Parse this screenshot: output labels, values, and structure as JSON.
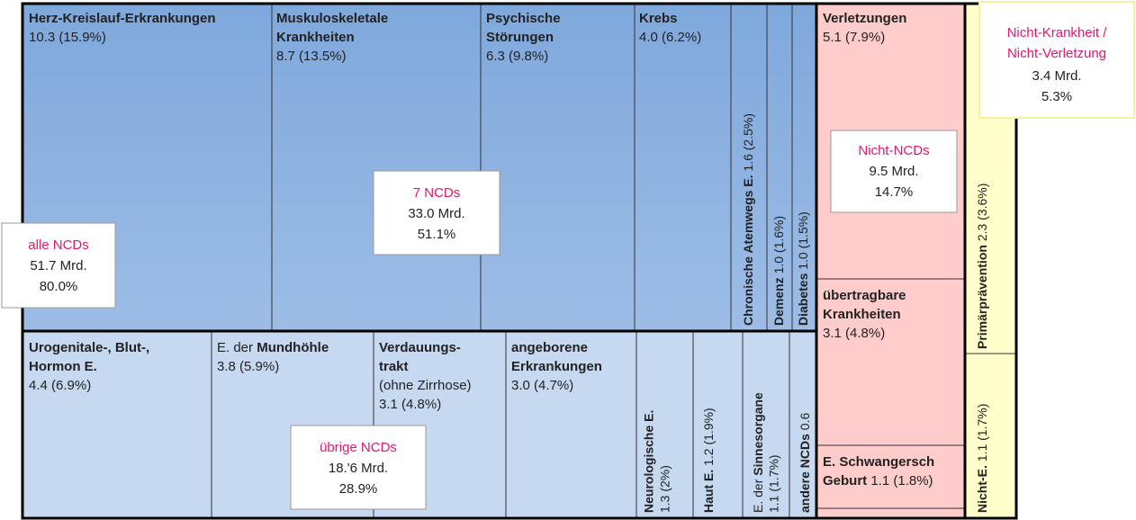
{
  "groups": {
    "all_ncds": {
      "label": "alle NCDs",
      "amount": "51.7 Mrd.",
      "share": "80.0%"
    },
    "seven_ncds": {
      "label": "7 NCDs",
      "amount": "33.0  Mrd.",
      "share": "51.1%"
    },
    "other_ncds": {
      "label": "übrige  NCDs",
      "amount": "18.'6 Mrd.",
      "share": "28.9%"
    },
    "non_ncds": {
      "label": "Nicht-NCDs",
      "amount": "9.5  Mrd.",
      "share": "14.7%"
    },
    "non_disease": {
      "label": [
        "Nicht-Krankheit /",
        "Nicht-Verletzung"
      ],
      "amount": "3.4 Mrd.",
      "share": "5.3%"
    }
  },
  "cells": [
    {
      "name": [
        "Herz-Kreislauf-Erkrankungen"
      ],
      "value": "10.3 (15.9%)"
    },
    {
      "name": [
        "Muskuloskeletale",
        "Krankheiten"
      ],
      "value": "8.7 (13.5%)"
    },
    {
      "name": [
        "Psychische",
        "Störungen"
      ],
      "value": "6.3 (9.8%)"
    },
    {
      "name": [
        "Krebs"
      ],
      "value": "4.0 (6.2%)"
    },
    {
      "name": [
        "Chronische Atemwegs E."
      ],
      "value": "1.6 (2.5%)"
    },
    {
      "name": [
        "Demenz"
      ],
      "value": "1.0 (1.6%)"
    },
    {
      "name": [
        "Diabetes"
      ],
      "value": "1.0 (1.5%)"
    },
    {
      "name": [
        "Urogenitale-, Blut-,",
        "Hormon E."
      ],
      "value": "4.4 (6.9%)"
    },
    {
      "prefix": "E. der",
      "name": [
        "Mundhöhle"
      ],
      "value": "3.8 (5.9%)"
    },
    {
      "name": [
        "Verdauungs-",
        "trakt"
      ],
      "note": "(ohne Zirrhose)",
      "value": "3.1 (4.8%)"
    },
    {
      "name": [
        "angeborene",
        "Erkrankungen"
      ],
      "value": "3.0 (4.7%)"
    },
    {
      "name": [
        "Neurologische E."
      ],
      "value": "1.3 (2%)"
    },
    {
      "name": [
        "Haut E."
      ],
      "value": "1.2 (1.9%)"
    },
    {
      "prefix": "E. der",
      "name": [
        "Sinnesorgane"
      ],
      "value": "1.1 (1.7%)"
    },
    {
      "name": [
        "andere NCDs"
      ],
      "value": "0.6"
    },
    {
      "name": [
        "Verletzungen"
      ],
      "value": "5.1 (7.9%)"
    },
    {
      "name": [
        "übertragbare",
        "Krankheiten"
      ],
      "value": "3.1 (4.8%)"
    },
    {
      "name": [
        "E. Schwangersch",
        "Geburt"
      ],
      "value": "1.1 (1.8%)"
    },
    {
      "name": [
        "Primärprävention"
      ],
      "value": "2.3 (3.6%)"
    },
    {
      "name": [
        "Nicht-E."
      ],
      "value": "1.1 (1.7%)"
    }
  ]
}
